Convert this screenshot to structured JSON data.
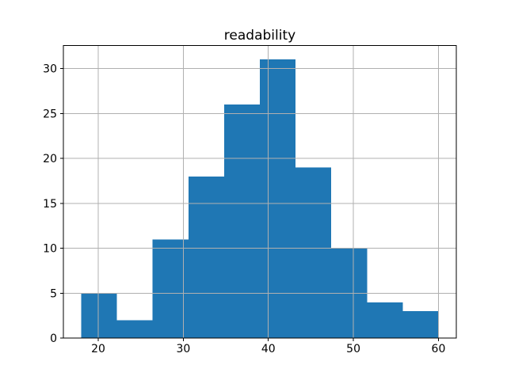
{
  "chart_data": {
    "type": "histogram",
    "title": "readability",
    "xlabel": "",
    "ylabel": "",
    "bin_edges": [
      18.0,
      22.2,
      26.4,
      30.6,
      34.8,
      39.0,
      43.2,
      47.4,
      51.6,
      55.8,
      60.0
    ],
    "counts": [
      5,
      2,
      11,
      18,
      26,
      31,
      19,
      10,
      4,
      3
    ],
    "x_ticks": [
      20,
      30,
      40,
      50,
      60
    ],
    "y_ticks": [
      0,
      5,
      10,
      15,
      20,
      25,
      30
    ],
    "xlim": [
      15.9,
      62.1
    ],
    "ylim": [
      0,
      32.55
    ],
    "grid": true,
    "grid_above_bars": true,
    "legend": null,
    "colors": {
      "bar": "#1f77b4",
      "grid": "#b0b0b0",
      "axis": "#000000",
      "text": "#000000",
      "background": "#ffffff"
    }
  }
}
